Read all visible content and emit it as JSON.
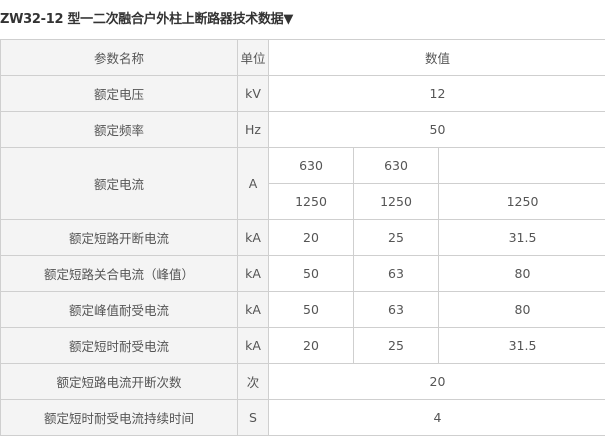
{
  "title": "ZW32-12 型一二次融合户外柱上断路器技术数据▼",
  "header": {
    "param": "参数名称",
    "unit": "单位",
    "value": "数值"
  },
  "rows": [
    {
      "param": "额定电压",
      "unit": "kV",
      "value": "12"
    },
    {
      "param": "额定频率",
      "unit": "Hz",
      "value": "50"
    },
    {
      "param": "额定电流",
      "unit": "A",
      "values_a": [
        "630",
        "630",
        ""
      ],
      "values_b": [
        "1250",
        "1250",
        "1250"
      ]
    },
    {
      "param": "额定短路开断电流",
      "unit": "kA",
      "values": [
        "20",
        "25",
        "31.5"
      ]
    },
    {
      "param": "额定短路关合电流（峰值）",
      "unit": "kA",
      "values": [
        "50",
        "63",
        "80"
      ]
    },
    {
      "param": "额定峰值耐受电流",
      "unit": "kA",
      "values": [
        "50",
        "63",
        "80"
      ]
    },
    {
      "param": "额定短时耐受电流",
      "unit": "kA",
      "values": [
        "20",
        "25",
        "31.5"
      ]
    },
    {
      "param": "额定短路电流开断次数",
      "unit": "次",
      "value": "20"
    },
    {
      "param": "额定短时耐受电流持续时间",
      "unit": "S",
      "value": "4"
    }
  ]
}
